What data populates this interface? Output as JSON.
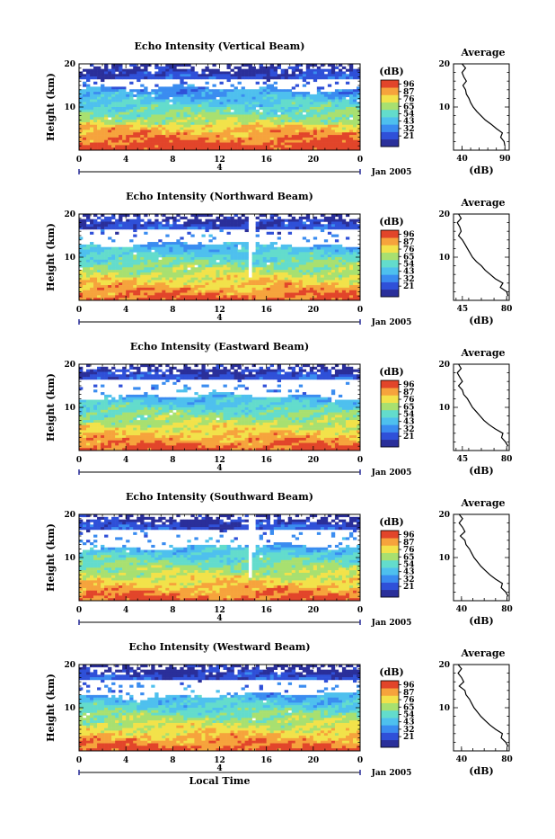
{
  "chart_data": [
    {
      "type": "heatmap",
      "title": "Echo Intensity (Vertical Beam)",
      "ylabel": "Height (km)",
      "x_ticks": [
        "0",
        "4",
        "8",
        "12",
        "16",
        "20",
        "0"
      ],
      "y_ticks": [
        "20",
        "10"
      ],
      "date_marker": "4",
      "date_label": "Jan 2005",
      "colorbar_unit": "(dB)",
      "colorbar_ticks": [
        "96",
        "87",
        "76",
        "65",
        "54",
        "43",
        "32",
        "21"
      ],
      "profile_title": "Average",
      "profile_xlabel": "(dB)",
      "profile_x_ticks": [
        "40",
        "90"
      ],
      "profile_y_ticks": [
        "20",
        "10"
      ],
      "profile_xlim": [
        30,
        95
      ],
      "profile_points": [
        [
          90,
          1
        ],
        [
          89,
          2
        ],
        [
          85,
          3
        ],
        [
          87,
          4
        ],
        [
          80,
          5
        ],
        [
          74,
          6
        ],
        [
          67,
          7
        ],
        [
          62,
          8
        ],
        [
          57,
          9
        ],
        [
          53,
          10
        ],
        [
          50,
          11
        ],
        [
          48,
          12
        ],
        [
          45,
          13
        ],
        [
          44,
          14
        ],
        [
          41,
          15
        ],
        [
          45,
          16
        ],
        [
          42,
          17
        ],
        [
          40,
          18
        ],
        [
          44,
          19
        ],
        [
          40,
          20
        ]
      ]
    },
    {
      "type": "heatmap",
      "title": "Echo Intensity (Northward Beam)",
      "ylabel": "Height (km)",
      "x_ticks": [
        "0",
        "4",
        "8",
        "12",
        "16",
        "20",
        "0"
      ],
      "y_ticks": [
        "20",
        "10"
      ],
      "date_marker": "4",
      "date_label": "Jan 2005",
      "colorbar_unit": "(dB)",
      "colorbar_ticks": [
        "96",
        "87",
        "76",
        "65",
        "54",
        "43",
        "32",
        "21"
      ],
      "profile_title": "Average",
      "profile_xlabel": "(dB)",
      "profile_x_ticks": [
        "45",
        "80"
      ],
      "profile_y_ticks": [
        "20",
        "10"
      ],
      "profile_xlim": [
        38,
        82
      ],
      "profile_points": [
        [
          81,
          1
        ],
        [
          80,
          2
        ],
        [
          75,
          3
        ],
        [
          77,
          4
        ],
        [
          71,
          5
        ],
        [
          67,
          6
        ],
        [
          63,
          7
        ],
        [
          60,
          8
        ],
        [
          56,
          9
        ],
        [
          53,
          10
        ],
        [
          51,
          11
        ],
        [
          49,
          12
        ],
        [
          47,
          13
        ],
        [
          45,
          14
        ],
        [
          42,
          15
        ],
        [
          44,
          16
        ],
        [
          43,
          17
        ],
        [
          41,
          18
        ],
        [
          44,
          19
        ],
        [
          42,
          20
        ]
      ]
    },
    {
      "type": "heatmap",
      "title": "Echo Intensity (Eastward Beam)",
      "ylabel": "Height (km)",
      "x_ticks": [
        "0",
        "4",
        "8",
        "12",
        "16",
        "20",
        "0"
      ],
      "y_ticks": [
        "20",
        "10"
      ],
      "date_marker": "4",
      "date_label": "Jan 2005",
      "colorbar_unit": "(dB)",
      "colorbar_ticks": [
        "96",
        "87",
        "76",
        "65",
        "54",
        "43",
        "32",
        "21"
      ],
      "profile_title": "Average",
      "profile_xlabel": "(dB)",
      "profile_x_ticks": [
        "45",
        "80"
      ],
      "profile_y_ticks": [
        "20",
        "10"
      ],
      "profile_xlim": [
        38,
        82
      ],
      "profile_points": [
        [
          81,
          1
        ],
        [
          79,
          2
        ],
        [
          76,
          3
        ],
        [
          77,
          4
        ],
        [
          71,
          5
        ],
        [
          66,
          6
        ],
        [
          62,
          7
        ],
        [
          59,
          8
        ],
        [
          56,
          9
        ],
        [
          53,
          10
        ],
        [
          51,
          11
        ],
        [
          49,
          12
        ],
        [
          46,
          13
        ],
        [
          45,
          14
        ],
        [
          42,
          15
        ],
        [
          45,
          16
        ],
        [
          43,
          17
        ],
        [
          41,
          18
        ],
        [
          44,
          19
        ],
        [
          42,
          20
        ]
      ]
    },
    {
      "type": "heatmap",
      "title": "Echo Intensity (Southward Beam)",
      "ylabel": "Height (km)",
      "x_ticks": [
        "0",
        "4",
        "8",
        "12",
        "16",
        "20",
        "0"
      ],
      "y_ticks": [
        "20",
        "10"
      ],
      "date_marker": "4",
      "date_label": "Jan 2005",
      "colorbar_unit": "(dB)",
      "colorbar_ticks": [
        "96",
        "87",
        "76",
        "65",
        "54",
        "43",
        "32",
        "21"
      ],
      "profile_title": "Average",
      "profile_xlabel": "(dB)",
      "profile_x_ticks": [
        "40",
        "80"
      ],
      "profile_y_ticks": [
        "20",
        "10"
      ],
      "profile_xlim": [
        33,
        82
      ],
      "profile_points": [
        [
          81,
          1
        ],
        [
          79,
          2
        ],
        [
          75,
          3
        ],
        [
          76,
          4
        ],
        [
          70,
          5
        ],
        [
          65,
          6
        ],
        [
          61,
          7
        ],
        [
          57,
          8
        ],
        [
          54,
          9
        ],
        [
          51,
          10
        ],
        [
          49,
          11
        ],
        [
          47,
          12
        ],
        [
          44,
          13
        ],
        [
          43,
          14
        ],
        [
          39,
          15
        ],
        [
          43,
          16
        ],
        [
          41,
          17
        ],
        [
          38,
          18
        ],
        [
          41,
          19
        ],
        [
          38,
          20
        ]
      ]
    },
    {
      "type": "heatmap",
      "title": "Echo Intensity (Westward Beam)",
      "ylabel": "Height (km)",
      "xlabel": "Local Time",
      "x_ticks": [
        "0",
        "4",
        "8",
        "12",
        "16",
        "20",
        "0"
      ],
      "y_ticks": [
        "20",
        "10"
      ],
      "date_marker": "4",
      "date_label": "Jan 2005",
      "colorbar_unit": "(dB)",
      "colorbar_ticks": [
        "96",
        "87",
        "76",
        "65",
        "54",
        "43",
        "32",
        "21"
      ],
      "profile_title": "Average",
      "profile_xlabel": "(dB)",
      "profile_x_ticks": [
        "40",
        "80"
      ],
      "profile_y_ticks": [
        "20",
        "10"
      ],
      "profile_xlim": [
        33,
        82
      ],
      "profile_points": [
        [
          81,
          1
        ],
        [
          79,
          2
        ],
        [
          75,
          3
        ],
        [
          76,
          4
        ],
        [
          70,
          5
        ],
        [
          65,
          6
        ],
        [
          61,
          7
        ],
        [
          57,
          8
        ],
        [
          54,
          9
        ],
        [
          51,
          10
        ],
        [
          49,
          11
        ],
        [
          47,
          12
        ],
        [
          44,
          13
        ],
        [
          43,
          14
        ],
        [
          38,
          15
        ],
        [
          42,
          16
        ],
        [
          40,
          17
        ],
        [
          37,
          18
        ],
        [
          40,
          19
        ],
        [
          37,
          20
        ]
      ]
    }
  ],
  "colormap": [
    "#2a2f9a",
    "#2f50d8",
    "#3a8cf0",
    "#4ec0ee",
    "#63dccc",
    "#a8e070",
    "#f2e24a",
    "#f6a33c",
    "#e2452a"
  ]
}
